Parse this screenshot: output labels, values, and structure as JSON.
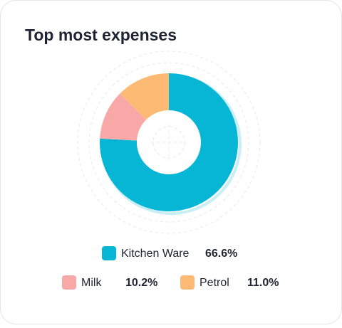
{
  "chart_data": {
    "type": "pie",
    "title": "Top most expenses",
    "categories": [
      "Kitchen Ware",
      "Milk",
      "Petrol"
    ],
    "values": [
      66.6,
      10.2,
      11.0
    ],
    "value_labels": [
      "66.6%",
      "10.2%",
      "11.0%"
    ],
    "colors": [
      "#06b6d4",
      "#f9a8a8",
      "#fdba74"
    ]
  }
}
